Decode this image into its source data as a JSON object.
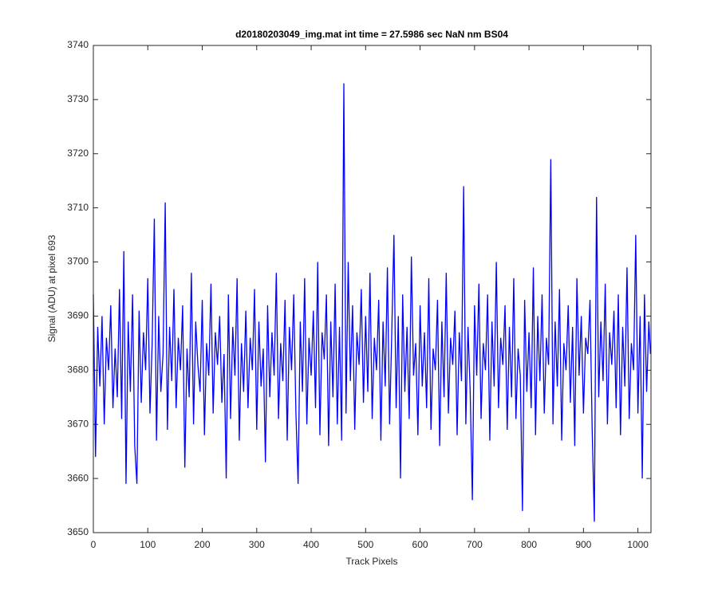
{
  "chart_data": {
    "type": "line",
    "title": "d20180203049_img.mat int time = 27.5986 sec  NaN nm BS04",
    "x_label": "Track Pixels",
    "y_label": "Signal (ADU) at pixel 693",
    "xlim": [
      0,
      1024
    ],
    "ylim": [
      3650,
      3740
    ],
    "xticks": [
      0,
      100,
      200,
      300,
      400,
      500,
      600,
      700,
      800,
      900,
      1000
    ],
    "yticks": [
      3650,
      3660,
      3670,
      3680,
      3690,
      3700,
      3710,
      3720,
      3730,
      3740
    ],
    "grid": false,
    "x": [
      0,
      4,
      8,
      12,
      16,
      20,
      24,
      28,
      32,
      36,
      40,
      44,
      48,
      52,
      56,
      60,
      64,
      68,
      72,
      76,
      80,
      84,
      88,
      92,
      96,
      100,
      104,
      108,
      112,
      116,
      120,
      124,
      128,
      132,
      136,
      140,
      144,
      148,
      152,
      156,
      160,
      164,
      168,
      172,
      176,
      180,
      184,
      188,
      192,
      196,
      200,
      204,
      208,
      212,
      216,
      220,
      224,
      228,
      232,
      236,
      240,
      244,
      248,
      252,
      256,
      260,
      264,
      268,
      272,
      276,
      280,
      284,
      288,
      292,
      296,
      300,
      304,
      308,
      312,
      316,
      320,
      324,
      328,
      332,
      336,
      340,
      344,
      348,
      352,
      356,
      360,
      364,
      368,
      372,
      376,
      380,
      384,
      388,
      392,
      396,
      400,
      404,
      408,
      412,
      416,
      420,
      424,
      428,
      432,
      436,
      440,
      444,
      448,
      452,
      456,
      460,
      464,
      468,
      472,
      476,
      480,
      484,
      488,
      492,
      496,
      500,
      504,
      508,
      512,
      516,
      520,
      524,
      528,
      532,
      536,
      540,
      544,
      548,
      552,
      556,
      560,
      564,
      568,
      572,
      576,
      580,
      584,
      588,
      592,
      596,
      600,
      604,
      608,
      612,
      616,
      620,
      624,
      628,
      632,
      636,
      640,
      644,
      648,
      652,
      656,
      660,
      664,
      668,
      672,
      676,
      680,
      684,
      688,
      692,
      696,
      700,
      704,
      708,
      712,
      716,
      720,
      724,
      728,
      732,
      736,
      740,
      744,
      748,
      752,
      756,
      760,
      764,
      768,
      772,
      776,
      780,
      784,
      788,
      792,
      796,
      800,
      804,
      808,
      812,
      816,
      820,
      824,
      828,
      832,
      836,
      840,
      844,
      848,
      852,
      856,
      860,
      864,
      868,
      872,
      876,
      880,
      884,
      888,
      892,
      896,
      900,
      904,
      908,
      912,
      916,
      920,
      924,
      928,
      932,
      936,
      940,
      944,
      948,
      952,
      956,
      960,
      964,
      968,
      972,
      976,
      980,
      984,
      988,
      992,
      996,
      1000,
      1004,
      1008,
      1012,
      1016,
      1020,
      1023
    ],
    "series": [
      {
        "name": "Signal",
        "color": "#0000ff",
        "values": [
          3694,
          3664,
          3688,
          3677,
          3690,
          3670,
          3686,
          3680,
          3692,
          3673,
          3684,
          3675,
          3695,
          3671,
          3702,
          3659,
          3689,
          3676,
          3694,
          3666,
          3659,
          3691,
          3674,
          3687,
          3680,
          3697,
          3672,
          3685,
          3708,
          3667,
          3690,
          3676,
          3683,
          3711,
          3669,
          3688,
          3678,
          3695,
          3673,
          3686,
          3680,
          3692,
          3662,
          3684,
          3675,
          3698,
          3670,
          3689,
          3681,
          3676,
          3693,
          3668,
          3685,
          3679,
          3696,
          3672,
          3687,
          3681,
          3690,
          3674,
          3683,
          3660,
          3694,
          3671,
          3688,
          3679,
          3697,
          3667,
          3685,
          3676,
          3691,
          3673,
          3686,
          3680,
          3695,
          3669,
          3689,
          3677,
          3684,
          3663,
          3692,
          3675,
          3687,
          3679,
          3698,
          3671,
          3685,
          3678,
          3693,
          3667,
          3688,
          3680,
          3694,
          3672,
          3659,
          3689,
          3676,
          3697,
          3670,
          3686,
          3679,
          3691,
          3673,
          3700,
          3668,
          3687,
          3682,
          3694,
          3666,
          3689,
          3675,
          3696,
          3670,
          3688,
          3667,
          3733,
          3672,
          3700,
          3678,
          3692,
          3669,
          3687,
          3681,
          3695,
          3674,
          3690,
          3676,
          3698,
          3671,
          3686,
          3680,
          3693,
          3667,
          3689,
          3677,
          3699,
          3670,
          3687,
          3705,
          3673,
          3690,
          3660,
          3694,
          3676,
          3688,
          3671,
          3701,
          3679,
          3685,
          3668,
          3692,
          3677,
          3687,
          3673,
          3697,
          3669,
          3684,
          3680,
          3693,
          3666,
          3689,
          3675,
          3698,
          3672,
          3686,
          3681,
          3691,
          3668,
          3687,
          3678,
          3714,
          3670,
          3688,
          3676,
          3656,
          3692,
          3679,
          3696,
          3671,
          3685,
          3680,
          3694,
          3667,
          3689,
          3677,
          3700,
          3673,
          3686,
          3681,
          3692,
          3669,
          3688,
          3675,
          3697,
          3671,
          3684,
          3679,
          3654,
          3693,
          3676,
          3687,
          3673,
          3699,
          3668,
          3690,
          3678,
          3694,
          3672,
          3686,
          3681,
          3719,
          3670,
          3689,
          3677,
          3695,
          3667,
          3685,
          3680,
          3692,
          3674,
          3688,
          3666,
          3697,
          3679,
          3690,
          3672,
          3686,
          3683,
          3693,
          3669,
          3652,
          3712,
          3675,
          3689,
          3678,
          3696,
          3670,
          3687,
          3681,
          3691,
          3673,
          3694,
          3668,
          3688,
          3677,
          3699,
          3671,
          3685,
          3680,
          3705,
          3672,
          3690,
          3660,
          3694,
          3676,
          3689,
          3683
        ]
      }
    ]
  }
}
